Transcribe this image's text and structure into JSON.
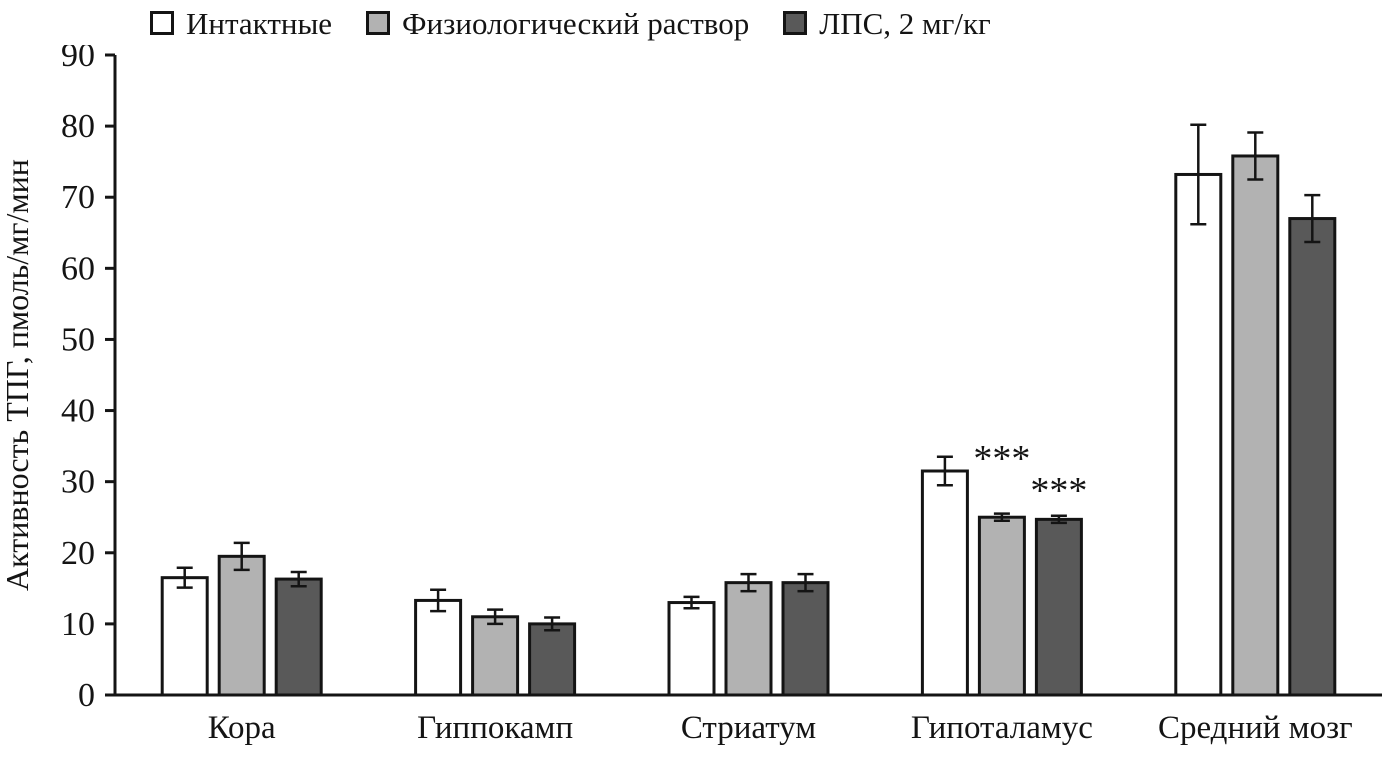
{
  "chart_data": {
    "type": "bar",
    "title": "",
    "ylabel": "Активность ТПГ, пмоль/мг/мин",
    "xlabel": "",
    "ylim": [
      0,
      90
    ],
    "yticks": [
      0,
      10,
      20,
      30,
      40,
      50,
      60,
      70,
      80,
      90
    ],
    "grid": false,
    "legend_position": "top",
    "categories": [
      "Кора",
      "Гиппокамп",
      "Стриатум",
      "Гипоталамус",
      "Средний мозг"
    ],
    "series": [
      {
        "name": "Интактные",
        "color": "#ffffff",
        "values": [
          16.5,
          13.3,
          13.0,
          31.5,
          73.2
        ],
        "errors": [
          1.4,
          1.5,
          0.8,
          2.0,
          7.0
        ]
      },
      {
        "name": "Физиологический раствор",
        "color": "#b2b2b2",
        "values": [
          19.5,
          11.0,
          15.8,
          25.0,
          75.8
        ],
        "errors": [
          1.9,
          1.0,
          1.2,
          0.5,
          3.3
        ]
      },
      {
        "name": "ЛПС, 2 мг/кг",
        "color": "#595959",
        "values": [
          16.3,
          10.0,
          15.8,
          24.7,
          67.0
        ],
        "errors": [
          1.0,
          0.9,
          1.2,
          0.5,
          3.3
        ]
      }
    ],
    "annotations": [
      {
        "text": "***",
        "category_index": 3,
        "series_index": 1,
        "y": 31.5
      },
      {
        "text": "***",
        "category_index": 3,
        "series_index": 2,
        "y": 27.0
      }
    ],
    "axis_color": "#141414"
  }
}
